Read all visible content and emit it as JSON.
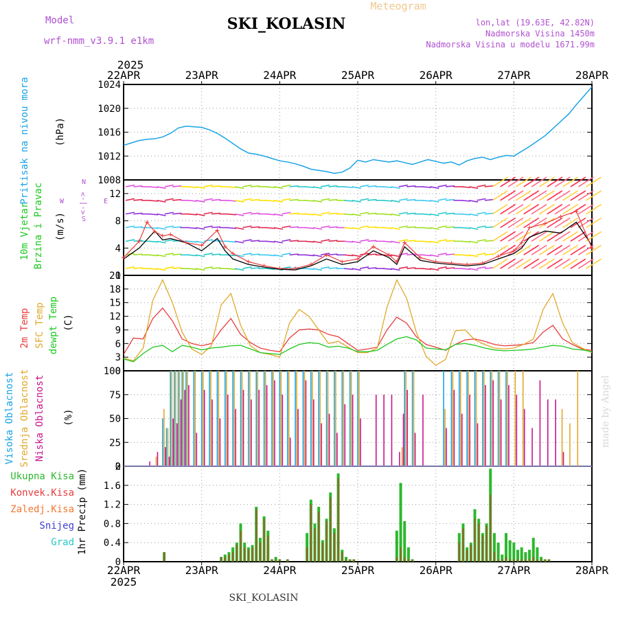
{
  "header": {
    "label_meteogram": "Meteogram",
    "label_model": "Model",
    "model_name": "wrf-nmm_v3.9.1 e1km",
    "station_title": "SKI_KOLASIN",
    "lonlat": "lon,lat (19.63E, 42.82N)",
    "elevation": "Nadmorska Visina 1450m",
    "model_elevation": "Nadmorska Visina u modelu 1671.99m",
    "year_top": "2025",
    "year_bottom": "2025",
    "footer": "SKI_KOLASIN",
    "credit": "made by Angel"
  },
  "colors": {
    "pressure": "#19a3e6",
    "wind_label": "#1ec81e",
    "temp": "#e83c3c",
    "sfc_temp": "#e0a82a",
    "dewpt": "#1ec81e",
    "cloud_high": "#19a3e6",
    "cloud_mid": "#e0a82a",
    "cloud_low": "#c8148c",
    "precip_total": "#2cb82c",
    "precip_conv": "#a05a28",
    "model": "#b050d0",
    "meteogram": "#f0c890"
  },
  "x_dates": [
    "22APR",
    "23APR",
    "24APR",
    "25APR",
    "26APR",
    "27APR",
    "28APR"
  ],
  "chart_data": [
    {
      "type": "line",
      "panel": "pressure",
      "label": "Pritisak na nivou mora",
      "unit": "(hPa)",
      "ylim": [
        1008,
        1024
      ],
      "yticks": [
        1008,
        1012,
        1016,
        1020,
        1024
      ],
      "series": [
        {
          "x": [
            0,
            0.1,
            0.2,
            0.3,
            0.4,
            0.5,
            0.6,
            0.7,
            0.8,
            0.9,
            1.0,
            1.1,
            1.2,
            1.3,
            1.4,
            1.5,
            1.6,
            1.7,
            1.8,
            1.9,
            2.0,
            2.1,
            2.2,
            2.3,
            2.4,
            2.5,
            2.6,
            2.7,
            2.8,
            2.9,
            3.0,
            3.1,
            3.2,
            3.3,
            3.4,
            3.5,
            3.6,
            3.7,
            3.8,
            3.9,
            4.0,
            4.1,
            4.2,
            4.3,
            4.4,
            4.5,
            4.6,
            4.7,
            4.8,
            4.9,
            5.0,
            5.1,
            5.2,
            5.3,
            5.4,
            5.5,
            5.6,
            5.7,
            5.8,
            5.9,
            6.0
          ],
          "values": [
            1013.8,
            1014.2,
            1014.6,
            1014.8,
            1014.9,
            1015.2,
            1015.8,
            1016.7,
            1017.0,
            1016.9,
            1016.8,
            1016.4,
            1015.8,
            1015.0,
            1014.1,
            1013.2,
            1012.5,
            1012.3,
            1012.0,
            1011.6,
            1011.2,
            1011.0,
            1010.7,
            1010.3,
            1009.8,
            1009.6,
            1009.4,
            1009.1,
            1009.3,
            1010.0,
            1011.3,
            1011.0,
            1011.4,
            1011.2,
            1011.0,
            1011.2,
            1010.9,
            1010.6,
            1011.0,
            1011.4,
            1011.1,
            1010.8,
            1011.0,
            1010.5,
            1011.2,
            1011.6,
            1011.8,
            1011.4,
            1011.8,
            1012.1,
            1012.0,
            1012.8,
            1013.6,
            1014.5,
            1015.4,
            1016.6,
            1017.8,
            1019.0,
            1020.6,
            1022.1,
            1023.6
          ]
        }
      ]
    },
    {
      "type": "line",
      "panel": "wind",
      "label": "10m Vjetar Brzina i Pravac",
      "unit": "(m/s)",
      "compass": {
        "w": "W",
        "e": "E",
        "s": "S",
        "n": "N",
        "arrow": "<-|->"
      },
      "ylim": [
        0,
        14
      ],
      "yticks": [
        0,
        4,
        8,
        12
      ],
      "series": [
        {
          "name": "speed",
          "x": [
            0,
            0.2,
            0.4,
            0.5,
            0.6,
            0.8,
            1.0,
            1.2,
            1.3,
            1.4,
            1.6,
            1.8,
            2.0,
            2.2,
            2.4,
            2.6,
            2.8,
            3.0,
            3.2,
            3.4,
            3.5,
            3.6,
            3.8,
            4.0,
            4.2,
            4.4,
            4.6,
            4.8,
            5.0,
            5.1,
            5.2,
            5.4,
            5.6,
            5.8,
            6.0
          ],
          "values": [
            2.4,
            4.0,
            6.5,
            5.2,
            5.4,
            4.8,
            3.6,
            5.4,
            3.6,
            2.4,
            1.6,
            1.2,
            0.9,
            0.8,
            1.4,
            2.4,
            1.6,
            2.0,
            3.6,
            2.6,
            1.6,
            4.2,
            2.2,
            1.8,
            1.6,
            1.4,
            1.6,
            2.4,
            3.2,
            4.0,
            5.6,
            6.5,
            6.2,
            7.8,
            4.4
          ]
        },
        {
          "name": "gust",
          "x": [
            0,
            0.2,
            0.3,
            0.4,
            0.5,
            0.6,
            0.8,
            1.0,
            1.2,
            1.3,
            1.4,
            1.6,
            1.8,
            2.0,
            2.2,
            2.4,
            2.6,
            2.8,
            3.0,
            3.2,
            3.4,
            3.5,
            3.6,
            3.8,
            4.0,
            4.2,
            4.4,
            4.6,
            4.8,
            5.0,
            5.1,
            5.2,
            5.4,
            5.6,
            5.8,
            6.0
          ],
          "values": [
            2.6,
            5.0,
            7.8,
            6.4,
            5.8,
            6.0,
            4.8,
            4.4,
            6.6,
            4.2,
            3.2,
            2.0,
            1.4,
            1.0,
            1.0,
            1.6,
            3.0,
            2.0,
            2.4,
            4.2,
            3.0,
            2.0,
            4.8,
            2.6,
            2.0,
            1.8,
            1.6,
            1.8,
            2.8,
            3.6,
            4.8,
            7.0,
            7.6,
            8.6,
            9.4,
            4.0
          ]
        }
      ]
    },
    {
      "type": "line",
      "panel": "temperature",
      "labels": [
        "2m Temp",
        "SFC Temp",
        "dewpt Temp"
      ],
      "unit": "(C)",
      "ylim": [
        0,
        21
      ],
      "yticks": [
        0,
        3,
        6,
        9,
        12,
        15,
        18,
        21
      ],
      "x": [
        0,
        0.125,
        0.25,
        0.375,
        0.5,
        0.625,
        0.75,
        0.875,
        1.0,
        1.125,
        1.25,
        1.375,
        1.5,
        1.625,
        1.75,
        1.875,
        2.0,
        2.125,
        2.25,
        2.375,
        2.5,
        2.625,
        2.75,
        2.875,
        3.0,
        3.125,
        3.25,
        3.375,
        3.5,
        3.625,
        3.75,
        3.875,
        4.0,
        4.125,
        4.25,
        4.375,
        4.5,
        4.625,
        4.75,
        4.875,
        5.0,
        5.125,
        5.25,
        5.375,
        5.5,
        5.625,
        5.75,
        5.875,
        6.0
      ],
      "series": [
        {
          "name": "2m Temp",
          "values": [
            3.6,
            7.2,
            7.0,
            11.5,
            13.8,
            11.0,
            7.0,
            6.0,
            5.5,
            6.0,
            9.0,
            11.5,
            8.0,
            6.2,
            5.0,
            4.5,
            4.2,
            7.2,
            9.0,
            9.2,
            9.0,
            8.0,
            7.5,
            6.0,
            4.5,
            4.8,
            5.2,
            9.0,
            11.8,
            10.5,
            7.5,
            5.8,
            5.2,
            4.5,
            5.8,
            6.8,
            7.0,
            6.5,
            5.8,
            5.5,
            5.6,
            5.8,
            6.2,
            8.5,
            10.0,
            7.0,
            5.8,
            4.8,
            4.5
          ]
        },
        {
          "name": "SFC Temp",
          "values": [
            2.8,
            2.2,
            5.0,
            15.5,
            20.0,
            15.0,
            8.5,
            4.8,
            3.6,
            5.5,
            14.5,
            17.0,
            10.0,
            5.5,
            4.0,
            3.6,
            3.0,
            10.5,
            13.5,
            12.0,
            9.0,
            6.0,
            6.5,
            5.2,
            4.0,
            4.0,
            5.0,
            14.0,
            20.0,
            16.0,
            8.5,
            3.2,
            1.2,
            2.5,
            8.8,
            9.0,
            6.8,
            5.8,
            5.0,
            4.8,
            5.0,
            5.8,
            7.0,
            13.5,
            17.0,
            10.5,
            6.2,
            5.0,
            4.0
          ]
        },
        {
          "name": "dewpt Temp",
          "values": [
            2.6,
            2.0,
            3.8,
            5.2,
            5.6,
            4.2,
            5.6,
            5.2,
            4.6,
            5.0,
            5.2,
            5.5,
            5.6,
            4.8,
            4.0,
            3.8,
            3.6,
            4.8,
            5.8,
            6.2,
            6.0,
            5.2,
            5.4,
            5.0,
            4.2,
            4.2,
            4.5,
            5.8,
            7.0,
            7.5,
            6.8,
            5.0,
            4.8,
            4.6,
            5.8,
            6.0,
            5.6,
            5.0,
            4.6,
            4.4,
            4.5,
            4.6,
            4.8,
            5.2,
            5.6,
            5.4,
            4.8,
            4.6,
            4.2
          ]
        }
      ]
    },
    {
      "type": "bar",
      "panel": "cloud",
      "labels": [
        "Visoka Oblacnost",
        "Srednja Oblacnost",
        "Niska Oblacnost"
      ],
      "unit": "(%)",
      "ylim": [
        0,
        100
      ],
      "yticks": [
        0,
        25,
        50,
        75,
        100
      ],
      "x": [
        0.3,
        0.4,
        0.5,
        0.55,
        0.6,
        0.65,
        0.7,
        0.75,
        0.8,
        0.9,
        1.0,
        1.1,
        1.2,
        1.3,
        1.4,
        1.5,
        1.6,
        1.7,
        1.8,
        1.9,
        2.0,
        2.1,
        2.2,
        2.3,
        2.4,
        2.5,
        2.6,
        2.7,
        2.8,
        2.9,
        3.0,
        3.2,
        3.3,
        3.4,
        3.5,
        3.55,
        3.6,
        3.7,
        3.8,
        3.9,
        4.0,
        4.1,
        4.2,
        4.3,
        4.4,
        4.5,
        4.6,
        4.7,
        4.8,
        4.9,
        5.0,
        5.1,
        5.2,
        5.3,
        5.4,
        5.5,
        5.6,
        5.7,
        5.8,
        5.9
      ],
      "series": [
        {
          "name": "Visoka Oblacnost",
          "values": [
            0,
            0,
            50,
            40,
            100,
            100,
            100,
            100,
            100,
            100,
            100,
            100,
            100,
            100,
            100,
            100,
            100,
            100,
            100,
            100,
            100,
            100,
            100,
            100,
            100,
            100,
            100,
            100,
            100,
            100,
            100,
            0,
            0,
            0,
            0,
            0,
            100,
            100,
            0,
            0,
            0,
            100,
            100,
            100,
            100,
            100,
            100,
            100,
            100,
            100,
            0,
            0,
            0,
            0,
            0,
            0,
            0,
            0,
            0,
            0
          ]
        },
        {
          "name": "Srednja Oblacnost",
          "values": [
            0,
            10,
            60,
            40,
            100,
            100,
            100,
            100,
            100,
            100,
            100,
            100,
            100,
            100,
            100,
            100,
            100,
            100,
            100,
            100,
            100,
            100,
            100,
            100,
            100,
            100,
            100,
            100,
            100,
            100,
            100,
            0,
            0,
            0,
            0,
            20,
            100,
            100,
            0,
            0,
            0,
            60,
            100,
            100,
            100,
            100,
            100,
            100,
            100,
            100,
            100,
            100,
            0,
            0,
            0,
            0,
            60,
            45,
            100,
            0
          ]
        },
        {
          "name": "Niska Oblacnost",
          "values": [
            5,
            15,
            20,
            10,
            50,
            45,
            70,
            80,
            85,
            35,
            80,
            70,
            50,
            75,
            60,
            80,
            70,
            80,
            85,
            90,
            75,
            30,
            60,
            90,
            70,
            45,
            55,
            35,
            65,
            75,
            50,
            75,
            75,
            75,
            15,
            55,
            80,
            35,
            75,
            0,
            0,
            40,
            80,
            55,
            75,
            45,
            85,
            90,
            70,
            85,
            75,
            60,
            40,
            90,
            70,
            70,
            15,
            0,
            0,
            0
          ]
        }
      ]
    },
    {
      "type": "bar",
      "panel": "precip",
      "labels": [
        "Ukupna Kisa",
        "Konvek.Kisa",
        "Zaledj.Kisa",
        "Snijeg",
        "Grad"
      ],
      "unit": "1hr Precip (mm)",
      "ylim": [
        0,
        2
      ],
      "yticks": [
        0,
        0.4,
        0.8,
        1.2,
        1.6,
        2
      ],
      "x": [
        0.52,
        1.25,
        1.3,
        1.35,
        1.4,
        1.45,
        1.5,
        1.55,
        1.6,
        1.65,
        1.7,
        1.75,
        1.8,
        1.85,
        1.9,
        1.95,
        2.0,
        2.1,
        2.35,
        2.4,
        2.45,
        2.5,
        2.55,
        2.6,
        2.65,
        2.7,
        2.75,
        2.8,
        2.85,
        2.9,
        2.95,
        3.5,
        3.55,
        3.6,
        3.65,
        3.7,
        4.3,
        4.35,
        4.4,
        4.45,
        4.5,
        4.55,
        4.6,
        4.65,
        4.7,
        4.75,
        4.8,
        4.85,
        4.9,
        4.95,
        5.0,
        5.05,
        5.1,
        5.15,
        5.2,
        5.25,
        5.3,
        5.35,
        5.4,
        5.45
      ],
      "series": [
        {
          "name": "Ukupna Kisa",
          "values": [
            0.2,
            0.1,
            0.15,
            0.2,
            0.3,
            0.4,
            0.8,
            0.4,
            0.3,
            0.35,
            1.15,
            0.5,
            0.95,
            0.65,
            0.05,
            0.1,
            0.05,
            0.05,
            0.6,
            1.3,
            0.8,
            1.15,
            0.45,
            0.9,
            1.45,
            0.7,
            1.85,
            0.25,
            0.1,
            0.05,
            0.05,
            0.65,
            1.65,
            0.85,
            0.3,
            0.05,
            0.6,
            0.8,
            0.3,
            0.4,
            1.1,
            0.9,
            0.6,
            0.8,
            1.95,
            0.6,
            0.4,
            0.15,
            0.6,
            0.45,
            0.4,
            0.25,
            0.3,
            0.2,
            0.25,
            0.5,
            0.3,
            0.1,
            0.05,
            0.05
          ]
        },
        {
          "name": "Konvek.Kisa",
          "values": [
            0.2,
            0.1,
            0.1,
            0.15,
            0.2,
            0.35,
            0.65,
            0.3,
            0.25,
            0.3,
            1.1,
            0.4,
            0.9,
            0.55,
            0.05,
            0.05,
            0.05,
            0.05,
            0.3,
            1.2,
            0.7,
            1.05,
            0.4,
            0.85,
            1.35,
            0.6,
            1.75,
            0.2,
            0.05,
            0.05,
            0.05,
            0.1,
            0.3,
            0.1,
            0.05,
            0.05,
            0.4,
            0.7,
            0.25,
            0.35,
            0.9,
            0.8,
            0.55,
            0.75,
            1.4,
            0.2,
            0.05,
            0.05,
            0.1,
            0.05,
            0.05,
            0.05,
            0.05,
            0.05,
            0.05,
            0.1,
            0.05,
            0.05,
            0.05,
            0.05
          ]
        }
      ]
    }
  ]
}
